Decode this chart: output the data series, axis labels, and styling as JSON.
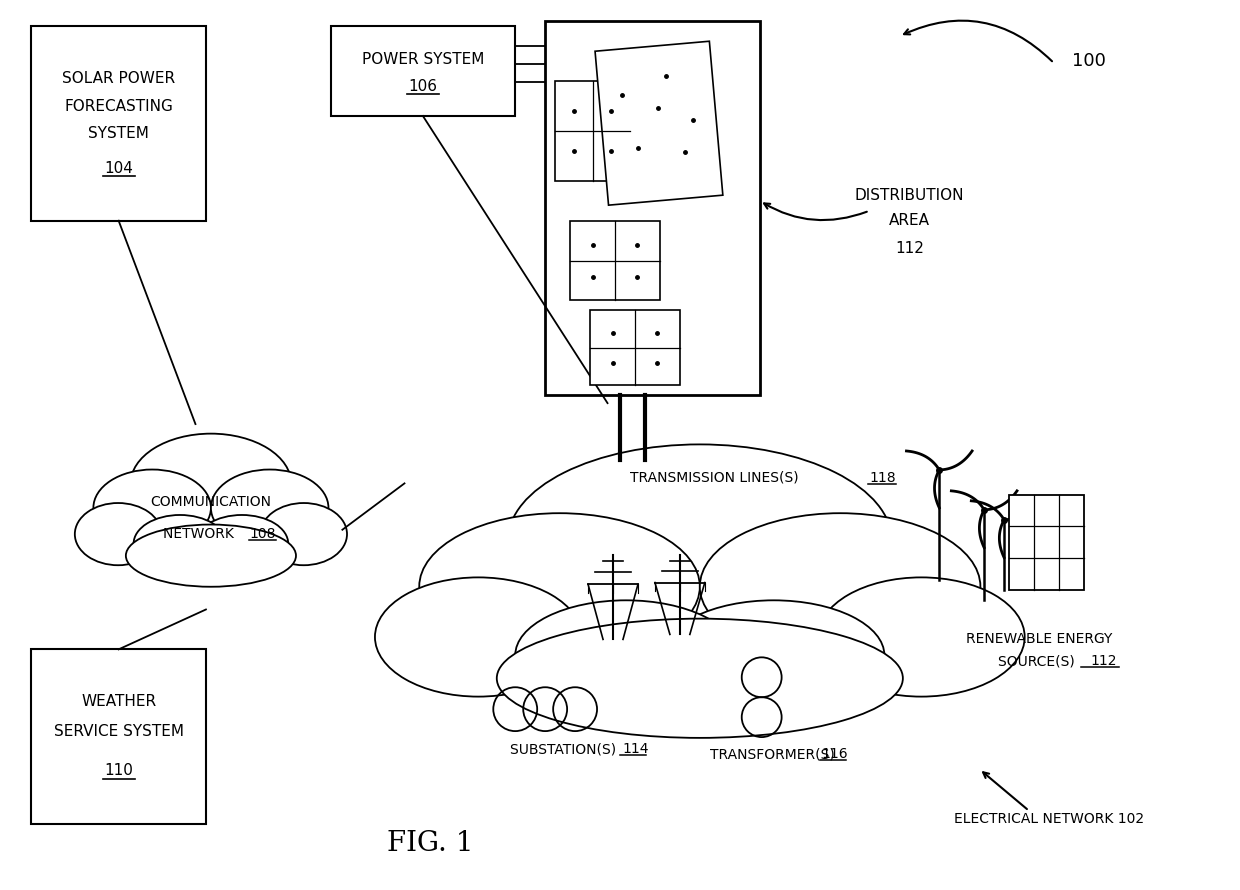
{
  "bg_color": "#ffffff",
  "fig_label": "FIG. 1",
  "system_ref": "100",
  "dist_area_label": "DISTRIBUTION\nAREA\n112",
  "elec_net_label": "ELECTRICAL NETWORK 102",
  "transmission_label": "TRANSMISSION LINES(S) ",
  "transmission_ref": "118",
  "substation_label": "SUBSTATION(S) ",
  "substation_ref": "114",
  "transformer_label": "TRANSFORMER(S) ",
  "transformer_ref": "116",
  "renewable_label": "RENEWABLE ENERGY\nSOURCE(S) ",
  "renewable_ref": "112",
  "solar_lines": [
    "SOLAR POWER",
    "FORECASTING",
    "SYSTEM"
  ],
  "solar_ref": "104",
  "power_lines": [
    "POWER SYSTEM"
  ],
  "power_ref": "106",
  "weather_lines": [
    "WEATHER",
    "SERVICE SYSTEM"
  ],
  "weather_ref": "110",
  "comm_lines": [
    "COMMUNICATION",
    "NETWORK "
  ],
  "comm_ref": "108"
}
